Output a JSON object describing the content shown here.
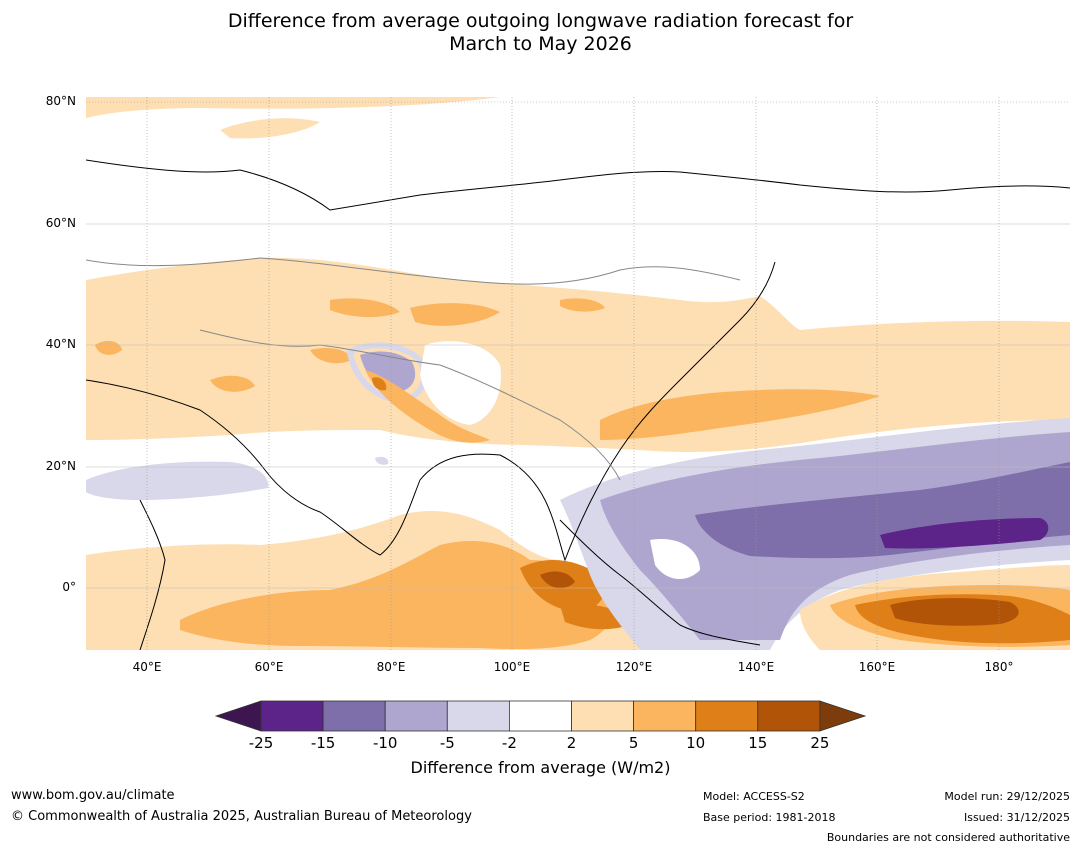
{
  "title_line1": "Difference from average outgoing longwave radiation forecast for",
  "title_line2": "March to May 2026",
  "lat_labels": [
    "80°N",
    "60°N",
    "40°N",
    "20°N",
    "0°"
  ],
  "lon_labels": [
    "40°E",
    "60°E",
    "80°E",
    "100°E",
    "120°E",
    "140°E",
    "160°E",
    "180°"
  ],
  "legend": {
    "label": "Difference from average (W/m2)",
    "ticks": [
      "-25",
      "-15",
      "-10",
      "-5",
      "-2",
      "2",
      "5",
      "10",
      "15",
      "25"
    ],
    "colors": [
      "#3d1551",
      "#5c2389",
      "#7e6faa",
      "#aea6cf",
      "#d9d8ea",
      "#ffffff",
      "#fedfb3",
      "#fbb55f",
      "#df7f18",
      "#b25408",
      "#7c3c0b"
    ]
  },
  "footer": {
    "website": "www.bom.gov.au/climate",
    "copyright": "© Commonwealth of Australia 2025, Australian Bureau of Meteorology",
    "model": "Model: ACCESS-S2",
    "base_period": "Base period: 1981-2018",
    "model_run": "Model run: 29/12/2025",
    "issued": "Issued: 31/12/2025",
    "boundaries": "Boundaries are not considered authoritative"
  }
}
